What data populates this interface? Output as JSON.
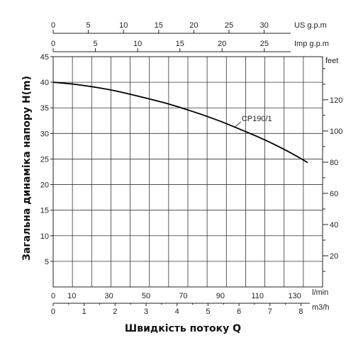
{
  "chart_data": {
    "type": "line",
    "xlabel": "Швидкість потоку Q",
    "ylabel": "Загальна динаміка напору H(m)",
    "y_right_unit": "feet",
    "axes": {
      "us_gpm": {
        "unit": "US g.p.m",
        "ticks": [
          0,
          5,
          10,
          15,
          20,
          25,
          30
        ]
      },
      "imp_gpm": {
        "unit": "Imp g.p.m",
        "ticks": [
          0,
          5,
          10,
          15,
          20,
          25
        ]
      },
      "lmin": {
        "unit": "l/min",
        "ticks": [
          0,
          10,
          30,
          50,
          70,
          90,
          110,
          130
        ]
      },
      "m3h": {
        "unit": "m3/h",
        "ticks": [
          0,
          1,
          2,
          3,
          4,
          5,
          6,
          7,
          8
        ]
      },
      "head_m": {
        "ticks": [
          5,
          10,
          15,
          20,
          25,
          30,
          35,
          40,
          45
        ],
        "ylim": [
          0,
          45
        ]
      },
      "head_ft": {
        "ticks": [
          20,
          40,
          60,
          80,
          100,
          120
        ]
      }
    },
    "xlim_lmin": [
      0,
      145
    ],
    "series": [
      {
        "name": "CP190/1",
        "color": "#000000",
        "x_lmin": [
          0,
          10,
          20,
          30,
          40,
          50,
          60,
          70,
          80,
          90,
          100,
          110,
          120,
          130,
          137
        ],
        "y_m": [
          40,
          39.7,
          39.2,
          38.6,
          37.8,
          36.9,
          36.0,
          34.9,
          33.7,
          32.4,
          30.9,
          29.4,
          27.7,
          25.8,
          24.3
        ]
      }
    ],
    "grid": true
  }
}
